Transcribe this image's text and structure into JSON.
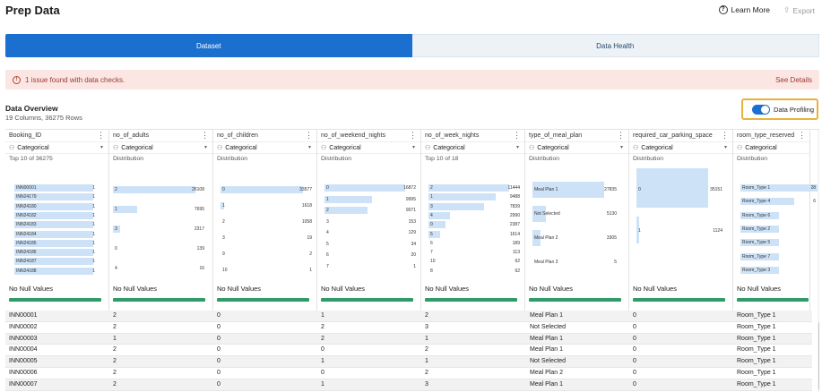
{
  "header": {
    "title": "Prep Data",
    "learn_more": "Learn More",
    "export": "Export"
  },
  "tabs": [
    {
      "label": "Dataset",
      "active": true
    },
    {
      "label": "Data Health",
      "active": false
    }
  ],
  "alert": {
    "text": "1 issue found with data checks.",
    "link": "See Details"
  },
  "overview": {
    "title": "Data Overview",
    "subtitle": "19 Columns, 36275 Rows"
  },
  "profiling": {
    "label": "Data Profiling",
    "enabled": true
  },
  "columns": [
    {
      "name": "Booking_ID",
      "type": "Categorical",
      "summary": "Top 10 of 36275",
      "null_text": "No Null Values",
      "bars": [
        {
          "label": "INN00001",
          "value": 1
        },
        {
          "label": "INN24179",
          "value": 1
        },
        {
          "label": "INN24180",
          "value": 1
        },
        {
          "label": "INN24182",
          "value": 1
        },
        {
          "label": "INN24183",
          "value": 1
        },
        {
          "label": "INN24184",
          "value": 1
        },
        {
          "label": "INN24185",
          "value": 1
        },
        {
          "label": "INN24186",
          "value": 1
        },
        {
          "label": "INN24187",
          "value": 1
        },
        {
          "label": "INN24188",
          "value": 1
        }
      ]
    },
    {
      "name": "no_of_adults",
      "type": "Categorical",
      "summary": "Distribution",
      "null_text": "No Null Values",
      "bars": [
        {
          "label": "2",
          "value": 26108
        },
        {
          "label": "1",
          "value": 7695
        },
        {
          "label": "3",
          "value": 2317
        },
        {
          "label": "0",
          "value": 139
        },
        {
          "label": "4",
          "value": 16
        }
      ]
    },
    {
      "name": "no_of_children",
      "type": "Categorical",
      "summary": "Distribution",
      "null_text": "No Null Values",
      "bars": [
        {
          "label": "0",
          "value": 33577
        },
        {
          "label": "1",
          "value": 1618
        },
        {
          "label": "2",
          "value": 1058
        },
        {
          "label": "3",
          "value": 19
        },
        {
          "label": "9",
          "value": 2
        },
        {
          "label": "10",
          "value": 1
        }
      ]
    },
    {
      "name": "no_of_weekend_nights",
      "type": "Categorical",
      "summary": "Distribution",
      "null_text": "No Null Values",
      "bars": [
        {
          "label": "0",
          "value": 16872
        },
        {
          "label": "1",
          "value": 9995
        },
        {
          "label": "2",
          "value": 9071
        },
        {
          "label": "3",
          "value": 153
        },
        {
          "label": "4",
          "value": 129
        },
        {
          "label": "5",
          "value": 34
        },
        {
          "label": "6",
          "value": 20
        },
        {
          "label": "7",
          "value": 1
        }
      ]
    },
    {
      "name": "no_of_week_nights",
      "type": "Categorical",
      "summary": "Top 10 of 18",
      "null_text": "No Null Values",
      "bars": [
        {
          "label": "2",
          "value": 11444
        },
        {
          "label": "1",
          "value": 9488
        },
        {
          "label": "3",
          "value": 7839
        },
        {
          "label": "4",
          "value": 2990
        },
        {
          "label": "0",
          "value": 2387
        },
        {
          "label": "5",
          "value": 1614
        },
        {
          "label": "6",
          "value": 189
        },
        {
          "label": "7",
          "value": 113
        },
        {
          "label": "10",
          "value": 62
        },
        {
          "label": "8",
          "value": 62
        }
      ]
    },
    {
      "name": "type_of_meal_plan",
      "type": "Categorical",
      "summary": "Distribution",
      "null_text": "No Null Values",
      "bars": [
        {
          "label": "Meal Plan 1",
          "value": 27835
        },
        {
          "label": "Not Selected",
          "value": 5130
        },
        {
          "label": "Meal Plan 2",
          "value": 3305
        },
        {
          "label": "Meal Plan 3",
          "value": 5
        }
      ]
    },
    {
      "name": "required_car_parking_space",
      "type": "Categorical",
      "summary": "Distribution",
      "null_text": "No Null Values",
      "bars": [
        {
          "label": "0",
          "value": 35151
        },
        {
          "label": "1",
          "value": 1124
        }
      ]
    },
    {
      "name": "room_type_reserved",
      "type": "Categorical",
      "summary": "Distribution",
      "null_text": "No Null Values",
      "bars": [
        {
          "label": "Room_Type 1",
          "value": "28"
        },
        {
          "label": "Room_Type 4",
          "value": "6"
        },
        {
          "label": "Room_Type 6",
          "value": ""
        },
        {
          "label": "Room_Type 2",
          "value": ""
        },
        {
          "label": "Room_Type 5",
          "value": ""
        },
        {
          "label": "Room_Type 7",
          "value": ""
        },
        {
          "label": "Room_Type 3",
          "value": ""
        }
      ]
    }
  ],
  "rows": [
    [
      "INN00001",
      "2",
      "0",
      "1",
      "2",
      "Meal Plan 1",
      "0",
      "Room_Type 1"
    ],
    [
      "INN00002",
      "2",
      "0",
      "2",
      "3",
      "Not Selected",
      "0",
      "Room_Type 1"
    ],
    [
      "INN00003",
      "1",
      "0",
      "2",
      "1",
      "Meal Plan 1",
      "0",
      "Room_Type 1"
    ],
    [
      "INN00004",
      "2",
      "0",
      "0",
      "2",
      "Meal Plan 1",
      "0",
      "Room_Type 1"
    ],
    [
      "INN00005",
      "2",
      "0",
      "1",
      "1",
      "Not Selected",
      "0",
      "Room_Type 1"
    ],
    [
      "INN00006",
      "2",
      "0",
      "0",
      "2",
      "Meal Plan 2",
      "0",
      "Room_Type 1"
    ],
    [
      "INN00007",
      "2",
      "0",
      "1",
      "3",
      "Meal Plan 1",
      "0",
      "Room_Type 1"
    ]
  ]
}
